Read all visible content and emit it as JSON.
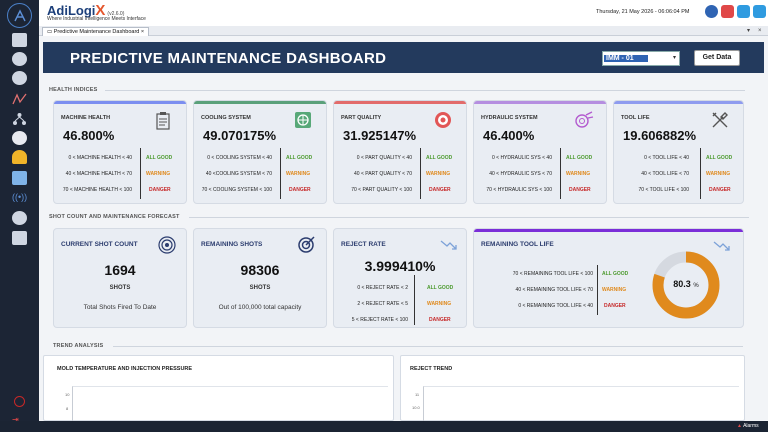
{
  "app": {
    "brand_name": "AdiLogi",
    "brand_x": "X",
    "version": "(v2.6.0)",
    "tagline": "Where Industrial Intelligence Meets Interface",
    "datetime": "Thursday, 21 May 2026 - 06:06:04 PM"
  },
  "tab": {
    "label": "Predictive Maintenance Dashboard",
    "close": "×",
    "pin": "▾",
    "x": "×"
  },
  "header": {
    "title": "PREDICTIVE MAINTENANCE DASHBOARD",
    "machine_selected": "IMM - 01",
    "get_data": "Get Data"
  },
  "sections": {
    "health": "HEALTH INDICES",
    "shot": "SHOT COUNT AND MAINTENANCE FORECAST",
    "trend": "TREND ANALYSIS"
  },
  "health": [
    {
      "title": "MACHINE HEALTH",
      "value": "46.800%",
      "icon": "clipboard-icon",
      "accent": "#7b8ef0",
      "ranges": [
        "0 < MACHINE HEALTH < 40",
        "40 < MACHINE HEALTH < 70",
        "70 < MACHINE HEALTH < 100"
      ]
    },
    {
      "title": "COOLING SYSTEM",
      "value": "49.070175%",
      "icon": "cooling-icon",
      "accent": "#5aa07a",
      "ranges": [
        "0 < COOLING SYSTEM < 40",
        "40 <COOLING SYSTEM < 70",
        "70 < COOLING SYSTEM < 100"
      ]
    },
    {
      "title": "PART QUALITY",
      "value": "31.925147%",
      "icon": "target-red-icon",
      "accent": "#e26b6b",
      "ranges": [
        "0 < PART QUALITY < 40",
        "40 < PART QUALITY < 70",
        "70 < PART QUALITY < 100"
      ]
    },
    {
      "title": "HYDRAULIC SYSTEM",
      "value": "46.400%",
      "icon": "hydraulic-icon",
      "accent": "#b58ee0",
      "ranges": [
        "0 < HYDRAULIC SYS < 40",
        "40 < HYDRAULIC SYS < 70",
        "70 < HYDRAULIC SYS < 100"
      ]
    },
    {
      "title": "TOOL LIFE",
      "value": "19.606882%",
      "icon": "tools-icon",
      "accent": "#8e9bef",
      "ranges": [
        "0 < TOOL LIFE < 40",
        "40 < TOOL LIFE < 70",
        "70 < TOOL LIFE < 100"
      ]
    }
  ],
  "status": {
    "good": "ALL GOOD",
    "warn": "WARNING",
    "danger": "DANGER"
  },
  "shot_count": {
    "title": "CURRENT SHOT COUNT",
    "value": "1694",
    "unit": "SHOTS",
    "caption": "Total Shots Fired To Date"
  },
  "remaining_shots": {
    "title": "REMAINING SHOTS",
    "value": "98306",
    "unit": "SHOTS",
    "caption": "Out of 100,000 total capacity"
  },
  "reject_rate": {
    "title": "REJECT RATE",
    "value": "3.999410%",
    "ranges": [
      "0 < REJECT RATE < 2",
      "2 < REJECT RATE < 5",
      "5 < REJECT RATE < 100"
    ]
  },
  "tool_life": {
    "title": "REMAINING TOOL LIFE",
    "percent": "80.3",
    "unit": "%",
    "fraction": 0.803,
    "ranges": [
      "70 < REMAINING TOOL LIFE < 100",
      "40 < REMAINING TOOL LIFE < 70",
      "0 < REMAINING TOOL LIFE < 40"
    ],
    "colors": {
      "fill": "#e08a1d",
      "track": "#d5d9e0"
    }
  },
  "trend": {
    "left_title": "MOLD TEMPERATURE AND INJECTION PRESSURE",
    "right_title": "REJECT  TREND",
    "left_ticks": [
      "10",
      "8"
    ],
    "right_ticks": [
      "11",
      "10.0"
    ]
  },
  "statusbar": {
    "alarms": "Alarms"
  }
}
